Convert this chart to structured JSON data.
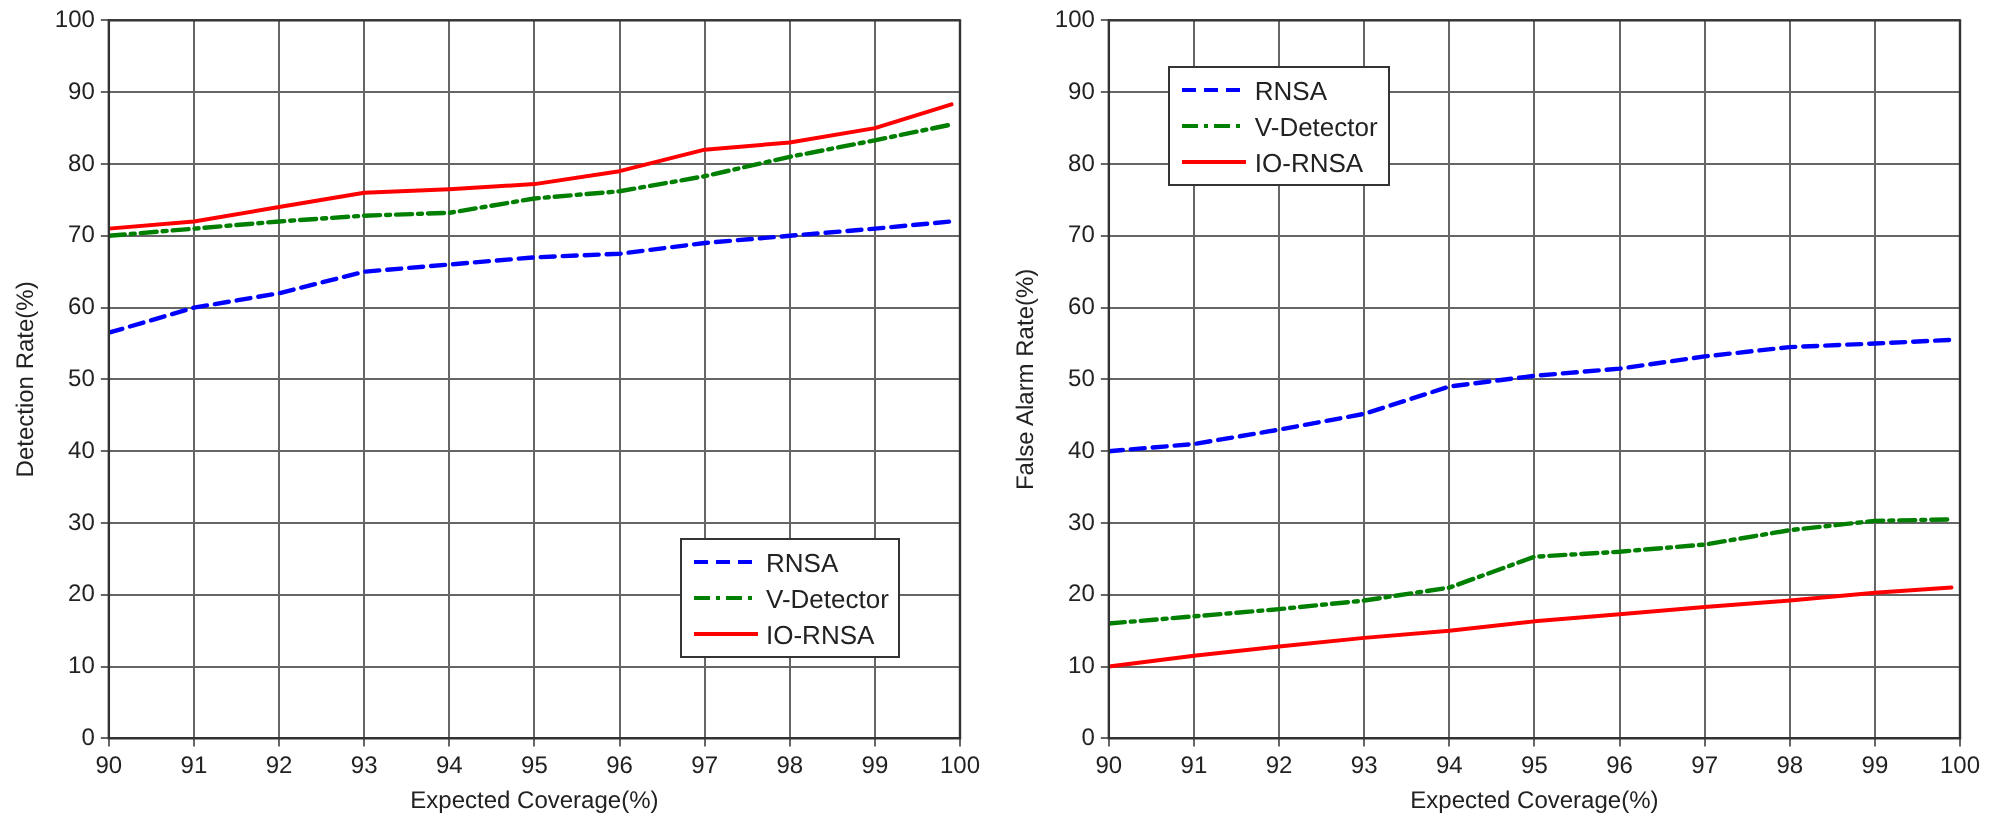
{
  "chart_data": [
    {
      "type": "line",
      "xlabel": "Expected Coverage(%)",
      "ylabel": "Detection Rate(%)",
      "x": [
        90,
        91,
        92,
        93,
        94,
        95,
        96,
        97,
        98,
        99,
        99.9
      ],
      "series": [
        {
          "name": "RNSA",
          "color": "#0000ff",
          "line_style": "dashed",
          "values": [
            56.5,
            60,
            62,
            65,
            66,
            67,
            67.5,
            69,
            70,
            71,
            72
          ]
        },
        {
          "name": "V-Detector",
          "color": "#007f00",
          "line_style": "dashdot",
          "values": [
            70,
            71,
            72,
            72.8,
            73.2,
            75.2,
            76.2,
            78.3,
            81,
            83.3,
            85.5
          ]
        },
        {
          "name": "IO-RNSA",
          "color": "#ff0000",
          "line_style": "solid",
          "values": [
            71,
            72,
            74,
            76,
            76.5,
            77.2,
            79,
            82,
            83,
            85,
            88.3
          ]
        }
      ],
      "xlim": [
        90,
        100
      ],
      "xticks": [
        90,
        91,
        92,
        93,
        94,
        95,
        96,
        97,
        98,
        99,
        100
      ],
      "ylim": [
        0,
        100
      ],
      "yticks": [
        0,
        10,
        20,
        30,
        40,
        50,
        60,
        70,
        80,
        90,
        100
      ],
      "grid": true,
      "legend": "bottom right",
      "marker": "none"
    },
    {
      "type": "line",
      "xlabel": "Expected Coverage(%)",
      "ylabel": "False Alarm Rate(%)",
      "x": [
        90,
        91,
        92,
        93,
        94,
        95,
        96,
        97,
        98,
        99,
        99.9
      ],
      "series": [
        {
          "name": "RNSA",
          "color": "#0000ff",
          "line_style": "dashed",
          "values": [
            40,
            41,
            43,
            45.2,
            49,
            50.5,
            51.5,
            53.2,
            54.5,
            55,
            55.5
          ]
        },
        {
          "name": "V-Detector",
          "color": "#007f00",
          "line_style": "dashdot",
          "values": [
            16,
            17,
            18,
            19.2,
            21,
            25.3,
            26,
            27,
            29,
            30.3,
            30.5
          ]
        },
        {
          "name": "IO-RNSA",
          "color": "#ff0000",
          "line_style": "solid",
          "values": [
            10,
            11.5,
            12.8,
            14,
            15,
            16.3,
            17.3,
            18.3,
            19.2,
            20.3,
            21
          ]
        }
      ],
      "xlim": [
        90,
        100
      ],
      "xticks": [
        90,
        91,
        92,
        93,
        94,
        95,
        96,
        97,
        98,
        99,
        100
      ],
      "ylim": [
        0,
        100
      ],
      "yticks": [
        0,
        10,
        20,
        30,
        40,
        50,
        60,
        70,
        80,
        90,
        100
      ],
      "grid": true,
      "legend": "top left",
      "marker": "none"
    }
  ]
}
